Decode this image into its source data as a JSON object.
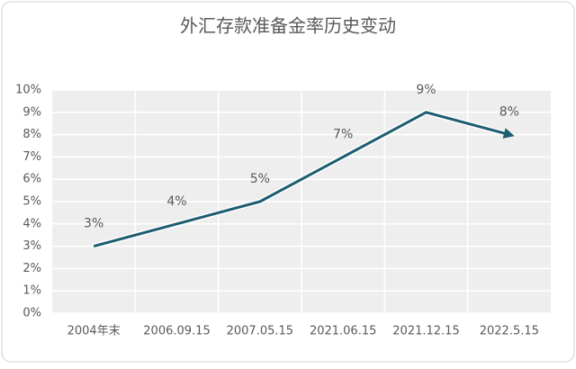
{
  "chart_data": {
    "type": "line",
    "title": "外汇存款准备金率历史变动",
    "categories": [
      "2004年末",
      "2006.09.15",
      "2007.05.15",
      "2021.06.15",
      "2021.12.15",
      "2022.5.15"
    ],
    "values": [
      3,
      4,
      5,
      7,
      9,
      8
    ],
    "value_labels": [
      "3%",
      "4%",
      "5%",
      "7%",
      "9%",
      "8%"
    ],
    "color": "#1d5d70",
    "ylim": [
      0,
      10
    ],
    "yticks": [
      {
        "value": 0,
        "label": "0%"
      },
      {
        "value": 1,
        "label": "1%"
      },
      {
        "value": 2,
        "label": "2%"
      },
      {
        "value": 3,
        "label": "3%"
      },
      {
        "value": 4,
        "label": "4%"
      },
      {
        "value": 5,
        "label": "5%"
      },
      {
        "value": 6,
        "label": "6%"
      },
      {
        "value": 7,
        "label": "7%"
      },
      {
        "value": 8,
        "label": "8%"
      },
      {
        "value": 9,
        "label": "9%"
      },
      {
        "value": 10,
        "label": "10%"
      }
    ],
    "grid": true
  }
}
